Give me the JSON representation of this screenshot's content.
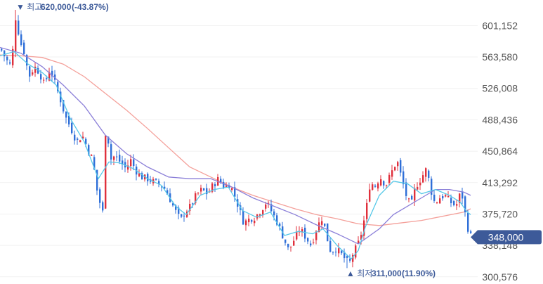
{
  "chart_data": {
    "type": "candlestick",
    "y_ticks": [
      "601,152",
      "563,580",
      "526,008",
      "488,436",
      "450,864",
      "413,292",
      "375,720",
      "338,148",
      "300,576"
    ],
    "ylim": [
      292000,
      625000
    ],
    "high_marker": {
      "prefix": "▼ 최고",
      "value": "620,000",
      "pct": "(-43.87%)",
      "raw": 620000
    },
    "low_marker": {
      "prefix": "▲ 최저",
      "value": "311,000",
      "pct": "(11.90%)",
      "raw": 311000
    },
    "current": {
      "label": "348,000",
      "raw": 348000
    },
    "colors": {
      "up": "#e0303c",
      "down": "#2f6fd8",
      "ma5": "#56c8e8",
      "ma20": "#8b7fd8",
      "ma60": "#f4a09a",
      "badge": "#3d5a99"
    },
    "close_path": [
      [
        0,
        573000
      ],
      [
        8,
        560000
      ],
      [
        15,
        552000
      ],
      [
        22,
        620000
      ],
      [
        26,
        585000
      ],
      [
        33,
        570000
      ],
      [
        40,
        540000
      ],
      [
        48,
        552000
      ],
      [
        55,
        545000
      ],
      [
        62,
        530000
      ],
      [
        70,
        550000
      ],
      [
        76,
        535000
      ],
      [
        85,
        512000
      ],
      [
        92,
        492000
      ],
      [
        100,
        478000
      ],
      [
        108,
        462000
      ],
      [
        116,
        470000
      ],
      [
        123,
        455000
      ],
      [
        131,
        440000
      ],
      [
        138,
        398000
      ],
      [
        145,
        378000
      ],
      [
        150,
        497000
      ],
      [
        155,
        440000
      ],
      [
        162,
        445000
      ],
      [
        170,
        438000
      ],
      [
        178,
        430000
      ],
      [
        185,
        440000
      ],
      [
        192,
        428000
      ],
      [
        200,
        420000
      ],
      [
        208,
        418000
      ],
      [
        216,
        415000
      ],
      [
        224,
        412000
      ],
      [
        232,
        408000
      ],
      [
        240,
        395000
      ],
      [
        248,
        380000
      ],
      [
        256,
        368000
      ],
      [
        262,
        378000
      ],
      [
        270,
        385000
      ],
      [
        278,
        398000
      ],
      [
        286,
        405000
      ],
      [
        294,
        400000
      ],
      [
        302,
        410000
      ],
      [
        310,
        418000
      ],
      [
        318,
        408000
      ],
      [
        326,
        412000
      ],
      [
        334,
        395000
      ],
      [
        340,
        380000
      ],
      [
        346,
        365000
      ],
      [
        354,
        370000
      ],
      [
        362,
        372000
      ],
      [
        370,
        380000
      ],
      [
        378,
        390000
      ],
      [
        386,
        378000
      ],
      [
        394,
        365000
      ],
      [
        402,
        348000
      ],
      [
        410,
        332000
      ],
      [
        418,
        346000
      ],
      [
        426,
        358000
      ],
      [
        434,
        348000
      ],
      [
        442,
        338000
      ],
      [
        450,
        360000
      ],
      [
        458,
        372000
      ],
      [
        464,
        348000
      ],
      [
        470,
        330000
      ],
      [
        476,
        335000
      ],
      [
        484,
        328000
      ],
      [
        490,
        322000
      ],
      [
        496,
        316000
      ],
      [
        502,
        330000
      ],
      [
        508,
        338000
      ],
      [
        514,
        355000
      ],
      [
        520,
        380000
      ],
      [
        526,
        415000
      ],
      [
        532,
        408000
      ],
      [
        540,
        420000
      ],
      [
        548,
        410000
      ],
      [
        556,
        425000
      ],
      [
        564,
        440000
      ],
      [
        570,
        420000
      ],
      [
        578,
        395000
      ],
      [
        584,
        385000
      ],
      [
        590,
        408000
      ],
      [
        598,
        418000
      ],
      [
        606,
        430000
      ],
      [
        612,
        405000
      ],
      [
        618,
        388000
      ],
      [
        624,
        395000
      ],
      [
        632,
        398000
      ],
      [
        640,
        390000
      ],
      [
        648,
        385000
      ],
      [
        654,
        400000
      ],
      [
        658,
        395000
      ],
      [
        662,
        370000
      ],
      [
        666,
        355000
      ],
      [
        670,
        348000
      ]
    ],
    "ma5_path": [
      [
        0,
        565000
      ],
      [
        20,
        570000
      ],
      [
        40,
        555000
      ],
      [
        60,
        545000
      ],
      [
        80,
        530000
      ],
      [
        100,
        490000
      ],
      [
        120,
        462000
      ],
      [
        140,
        418000
      ],
      [
        155,
        438000
      ],
      [
        170,
        437000
      ],
      [
        190,
        430000
      ],
      [
        210,
        418000
      ],
      [
        230,
        410000
      ],
      [
        250,
        385000
      ],
      [
        265,
        375000
      ],
      [
        285,
        398000
      ],
      [
        305,
        405000
      ],
      [
        325,
        408000
      ],
      [
        345,
        380000
      ],
      [
        365,
        372000
      ],
      [
        385,
        378000
      ],
      [
        405,
        350000
      ],
      [
        425,
        355000
      ],
      [
        445,
        352000
      ],
      [
        460,
        358000
      ],
      [
        480,
        338000
      ],
      [
        500,
        322000
      ],
      [
        510,
        332000
      ],
      [
        520,
        360000
      ],
      [
        540,
        398000
      ],
      [
        560,
        415000
      ],
      [
        580,
        412000
      ],
      [
        600,
        400000
      ],
      [
        620,
        405000
      ],
      [
        640,
        398000
      ],
      [
        655,
        390000
      ],
      [
        665,
        378000
      ],
      [
        670,
        375000
      ]
    ],
    "ma20_path": [
      [
        0,
        575000
      ],
      [
        30,
        568000
      ],
      [
        60,
        552000
      ],
      [
        90,
        530000
      ],
      [
        120,
        505000
      ],
      [
        150,
        470000
      ],
      [
        180,
        448000
      ],
      [
        210,
        432000
      ],
      [
        240,
        420000
      ],
      [
        270,
        418000
      ],
      [
        300,
        418000
      ],
      [
        330,
        408000
      ],
      [
        360,
        395000
      ],
      [
        390,
        385000
      ],
      [
        420,
        375000
      ],
      [
        450,
        363000
      ],
      [
        480,
        352000
      ],
      [
        510,
        340000
      ],
      [
        540,
        358000
      ],
      [
        560,
        375000
      ],
      [
        580,
        385000
      ],
      [
        600,
        395000
      ],
      [
        620,
        405000
      ],
      [
        640,
        405000
      ],
      [
        660,
        402000
      ],
      [
        670,
        398000
      ]
    ],
    "ma60_path": [
      [
        0,
        566000
      ],
      [
        30,
        565000
      ],
      [
        60,
        563000
      ],
      [
        90,
        555000
      ],
      [
        120,
        540000
      ],
      [
        150,
        520000
      ],
      [
        180,
        500000
      ],
      [
        210,
        478000
      ],
      [
        240,
        455000
      ],
      [
        270,
        432000
      ],
      [
        300,
        420000
      ],
      [
        330,
        408000
      ],
      [
        360,
        398000
      ],
      [
        390,
        390000
      ],
      [
        420,
        382000
      ],
      [
        450,
        375000
      ],
      [
        480,
        370000
      ],
      [
        510,
        364000
      ],
      [
        540,
        362000
      ],
      [
        570,
        365000
      ],
      [
        600,
        368000
      ],
      [
        630,
        373000
      ],
      [
        660,
        378000
      ],
      [
        670,
        382000
      ]
    ]
  }
}
